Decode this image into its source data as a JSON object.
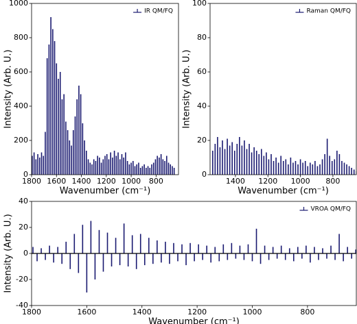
{
  "chart_data": [
    {
      "type": "stick",
      "legend": "upper right",
      "color": "#191970",
      "xlabel": "Wavenumber (cm⁻¹)",
      "ylabel": "Intensity (Arb. U.)",
      "xlim": [
        1800,
        620
      ],
      "ylim": [
        0,
        1000
      ],
      "xticks": [
        1800,
        1600,
        1400,
        1200,
        1000,
        800
      ],
      "yticks": [
        0,
        200,
        400,
        600,
        800,
        1000
      ],
      "series": [
        {
          "name": "IR QM/FQ",
          "color": "#191970",
          "x": [
            1795,
            1780,
            1765,
            1750,
            1735,
            1720,
            1705,
            1690,
            1675,
            1660,
            1645,
            1630,
            1615,
            1600,
            1585,
            1570,
            1555,
            1540,
            1525,
            1510,
            1495,
            1480,
            1465,
            1450,
            1435,
            1420,
            1405,
            1390,
            1375,
            1360,
            1345,
            1330,
            1315,
            1300,
            1285,
            1270,
            1255,
            1240,
            1225,
            1210,
            1195,
            1180,
            1165,
            1150,
            1135,
            1120,
            1105,
            1090,
            1075,
            1060,
            1045,
            1030,
            1015,
            1000,
            985,
            970,
            955,
            940,
            925,
            910,
            895,
            880,
            865,
            850,
            835,
            820,
            805,
            790,
            775,
            760,
            745,
            730,
            715,
            700,
            685,
            670,
            655
          ],
          "values": [
            110,
            130,
            90,
            120,
            100,
            130,
            110,
            250,
            680,
            760,
            920,
            850,
            780,
            650,
            560,
            600,
            440,
            470,
            310,
            260,
            200,
            170,
            260,
            340,
            440,
            520,
            470,
            300,
            200,
            140,
            90,
            70,
            60,
            90,
            80,
            110,
            100,
            70,
            90,
            110,
            120,
            90,
            130,
            100,
            140,
            110,
            130,
            90,
            120,
            100,
            130,
            80,
            60,
            70,
            80,
            50,
            60,
            70,
            40,
            50,
            60,
            40,
            50,
            40,
            60,
            70,
            90,
            110,
            100,
            120,
            90,
            80,
            110,
            70,
            60,
            50,
            40
          ]
        }
      ]
    },
    {
      "type": "stick",
      "legend": "upper right",
      "color": "#191970",
      "xlabel": "Wavenumber (cm⁻¹)",
      "ylabel": "Intensity (Arb. U.)",
      "xlim": [
        1556,
        656
      ],
      "ylim": [
        0,
        100
      ],
      "xticks": [
        1400,
        1200,
        1000,
        800
      ],
      "yticks": [
        0,
        20,
        40,
        60,
        80,
        100
      ],
      "series": [
        {
          "name": "Raman QM/FQ",
          "color": "#191970",
          "x": [
            1540,
            1525,
            1510,
            1495,
            1480,
            1465,
            1450,
            1435,
            1420,
            1405,
            1390,
            1375,
            1360,
            1345,
            1330,
            1315,
            1300,
            1285,
            1270,
            1255,
            1240,
            1225,
            1210,
            1195,
            1180,
            1165,
            1150,
            1135,
            1120,
            1105,
            1090,
            1075,
            1060,
            1045,
            1030,
            1015,
            1000,
            985,
            970,
            955,
            940,
            925,
            910,
            895,
            880,
            865,
            850,
            835,
            820,
            805,
            790,
            775,
            760,
            745,
            730,
            715,
            700,
            685,
            670,
            655
          ],
          "values": [
            14,
            18,
            22,
            16,
            20,
            15,
            21,
            17,
            19,
            14,
            18,
            22,
            17,
            20,
            15,
            18,
            13,
            16,
            14,
            12,
            15,
            11,
            13,
            9,
            12,
            8,
            10,
            7,
            11,
            8,
            9,
            6,
            10,
            7,
            8,
            6,
            9,
            7,
            8,
            5,
            7,
            6,
            8,
            5,
            6,
            9,
            12,
            21,
            11,
            8,
            9,
            14,
            12,
            8,
            7,
            6,
            5,
            4,
            3,
            2
          ]
        }
      ]
    },
    {
      "type": "stick",
      "legend": "upper right",
      "color": "#191970",
      "zero_line": true,
      "xlabel": "Wavenumber (cm⁻¹)",
      "ylabel": "Intensity (Arb. U.)",
      "xlim": [
        1800,
        623
      ],
      "ylim": [
        -40,
        40
      ],
      "xticks": [
        1800,
        1600,
        1400,
        1200,
        1000,
        800
      ],
      "yticks": [
        -40,
        -20,
        0,
        20,
        40
      ],
      "series": [
        {
          "name": "VROA QM/FQ",
          "color": "#191970",
          "x": [
            1795,
            1780,
            1765,
            1750,
            1735,
            1720,
            1705,
            1690,
            1675,
            1660,
            1645,
            1630,
            1615,
            1600,
            1585,
            1570,
            1555,
            1540,
            1525,
            1510,
            1495,
            1480,
            1465,
            1450,
            1435,
            1420,
            1405,
            1390,
            1375,
            1360,
            1345,
            1330,
            1315,
            1300,
            1285,
            1270,
            1255,
            1240,
            1225,
            1210,
            1195,
            1180,
            1165,
            1150,
            1135,
            1120,
            1105,
            1090,
            1075,
            1060,
            1045,
            1030,
            1015,
            1000,
            985,
            970,
            955,
            940,
            925,
            910,
            895,
            880,
            865,
            850,
            835,
            820,
            805,
            790,
            775,
            760,
            745,
            730,
            715,
            700,
            685,
            670,
            655,
            640,
            625
          ],
          "values": [
            5,
            -6,
            4,
            -5,
            6,
            -7,
            5,
            -8,
            9,
            -12,
            15,
            -15,
            22,
            -30,
            25,
            -20,
            18,
            -14,
            16,
            -10,
            12,
            -9,
            23,
            -10,
            14,
            -12,
            15,
            -9,
            12,
            -8,
            10,
            -7,
            9,
            -8,
            8,
            -6,
            7,
            -9,
            8,
            -6,
            7,
            -5,
            6,
            -7,
            5,
            -6,
            7,
            -5,
            8,
            -4,
            6,
            -5,
            7,
            -6,
            19,
            -8,
            6,
            -5,
            5,
            -4,
            6,
            -5,
            4,
            -6,
            5,
            -4,
            6,
            -7,
            5,
            -5,
            4,
            -4,
            6,
            -5,
            15,
            -6,
            5,
            -4,
            3
          ]
        }
      ]
    }
  ]
}
